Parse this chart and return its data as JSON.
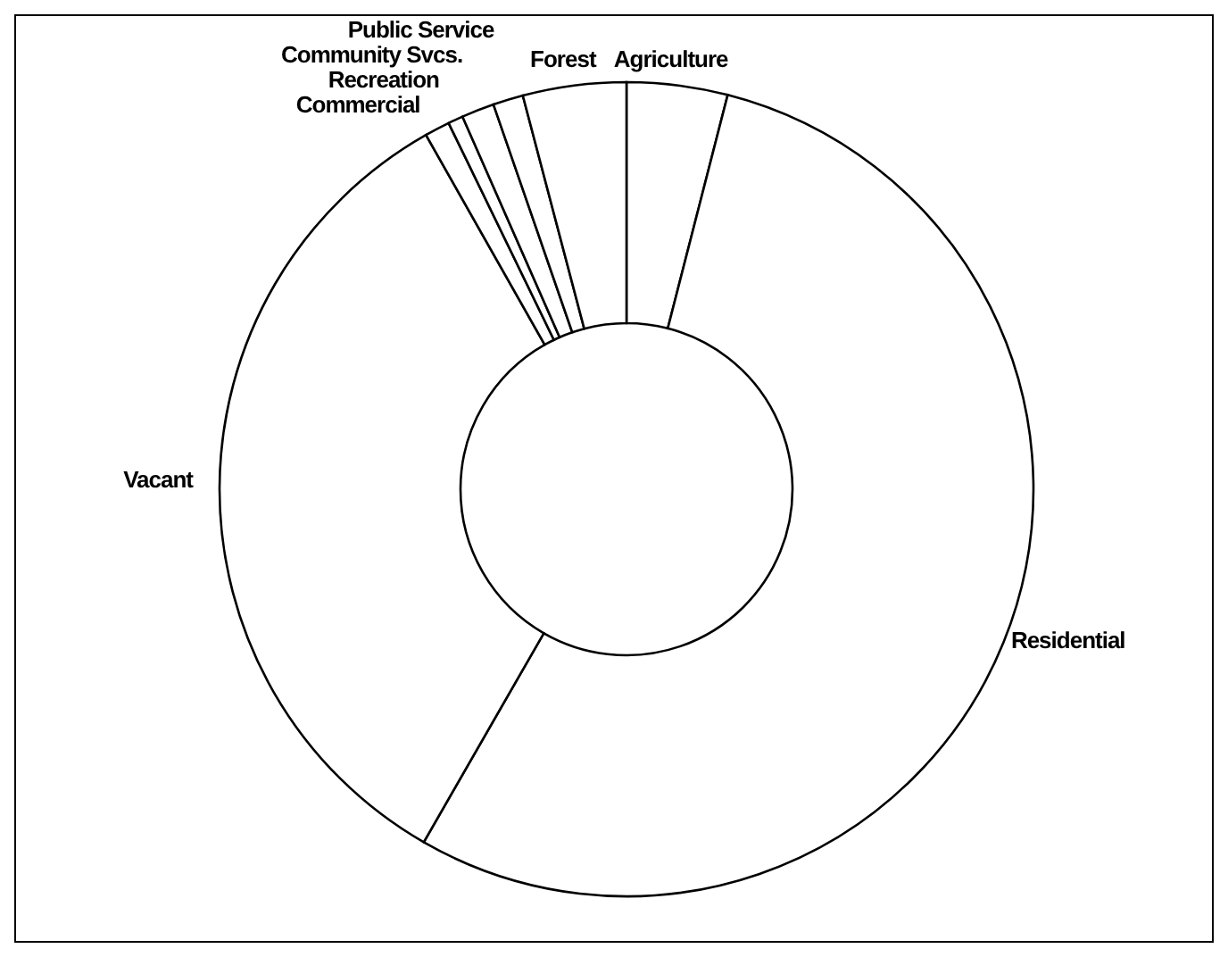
{
  "chart_data": {
    "type": "donut",
    "categories": [
      "Agriculture",
      "Residential",
      "Vacant",
      "Commercial",
      "Recreation",
      "Community Svcs.",
      "Public Service",
      "Forest"
    ],
    "values": [
      4.0,
      54.3,
      33.5,
      1.0,
      0.6,
      1.3,
      1.2,
      4.1
    ],
    "colors": [
      "#ffffff",
      "#ffffff",
      "#ffffff",
      "#ffffff",
      "#ffffff",
      "#ffffff",
      "#ffffff",
      "#ffffff"
    ],
    "legend": false
  }
}
